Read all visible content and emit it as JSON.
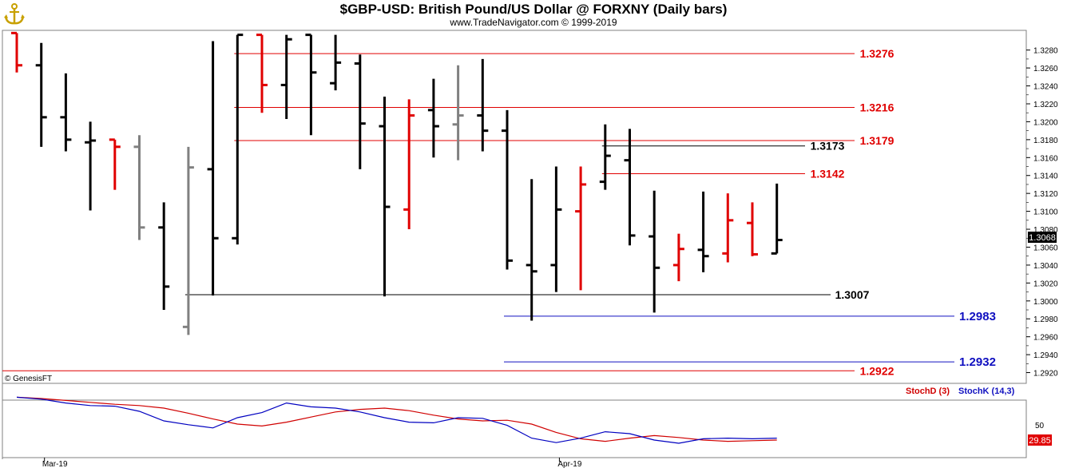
{
  "header": {
    "title": "$GBP-USD:  British Pound/US Dollar @ FORXNY  (Daily bars)",
    "subtitle": "www.TradeNavigator.com © 1999-2019"
  },
  "copyright": "© GenesisFT",
  "colors": {
    "up": "#000000",
    "down": "#e00000",
    "neutral": "#808080",
    "support_blue": "#1010c0",
    "stochD": "#d00000",
    "stochK": "#0000c0"
  },
  "chart_data": [
    {
      "type": "ohlc",
      "y_axis": {
        "range": [
          1.2908,
          1.3302
        ],
        "ticks": [
          "1.3280",
          "1.3260",
          "1.3240",
          "1.3220",
          "1.3200",
          "1.3180",
          "1.3160",
          "1.3140",
          "1.3120",
          "1.3100",
          "1.3080",
          "1.3060",
          "1.3040",
          "1.3020",
          "1.3000",
          "1.2980",
          "1.2960",
          "1.2940",
          "1.2920"
        ]
      },
      "x_labels": [
        {
          "label": "Mar-19",
          "bar": 1
        },
        {
          "label": "Apr-19",
          "bar": 22
        }
      ],
      "last_price": "1.3068",
      "bars": [
        {
          "o": 1.3299,
          "h": 1.3299,
          "l": 1.3255,
          "c": 1.3263,
          "color": "down"
        },
        {
          "o": 1.3263,
          "h": 1.3288,
          "l": 1.3172,
          "c": 1.3205,
          "color": "up"
        },
        {
          "o": 1.3205,
          "h": 1.3254,
          "l": 1.3167,
          "c": 1.318,
          "color": "up"
        },
        {
          "o": 1.3177,
          "h": 1.32,
          "l": 1.3101,
          "c": 1.3179,
          "color": "up"
        },
        {
          "o": 1.318,
          "h": 1.318,
          "l": 1.3124,
          "c": 1.3172,
          "color": "down"
        },
        {
          "o": 1.3172,
          "h": 1.3185,
          "l": 1.3068,
          "c": 1.3082,
          "color": "neutral"
        },
        {
          "o": 1.3082,
          "h": 1.311,
          "l": 1.299,
          "c": 1.3016,
          "color": "up"
        },
        {
          "o": 1.2971,
          "h": 1.3172,
          "l": 1.2962,
          "c": 1.3149,
          "color": "neutral"
        },
        {
          "o": 1.3147,
          "h": 1.329,
          "l": 1.3006,
          "c": 1.307,
          "color": "up"
        },
        {
          "o": 1.307,
          "h": 1.3297,
          "l": 1.3063,
          "c": 1.3297,
          "color": "up"
        },
        {
          "o": 1.3297,
          "h": 1.3297,
          "l": 1.321,
          "c": 1.3241,
          "color": "down"
        },
        {
          "o": 1.3241,
          "h": 1.3297,
          "l": 1.3203,
          "c": 1.3292,
          "color": "up"
        },
        {
          "o": 1.3297,
          "h": 1.3297,
          "l": 1.3185,
          "c": 1.3255,
          "color": "up"
        },
        {
          "o": 1.3243,
          "h": 1.3297,
          "l": 1.3235,
          "c": 1.3266,
          "color": "up"
        },
        {
          "o": 1.3265,
          "h": 1.3275,
          "l": 1.3147,
          "c": 1.3198,
          "color": "up"
        },
        {
          "o": 1.3195,
          "h": 1.3228,
          "l": 1.3005,
          "c": 1.3105,
          "color": "up"
        },
        {
          "o": 1.3102,
          "h": 1.3225,
          "l": 1.308,
          "c": 1.3207,
          "color": "down"
        },
        {
          "o": 1.3213,
          "h": 1.3248,
          "l": 1.316,
          "c": 1.3195,
          "color": "up"
        },
        {
          "o": 1.3197,
          "h": 1.3263,
          "l": 1.3157,
          "c": 1.3207,
          "color": "neutral"
        },
        {
          "o": 1.3207,
          "h": 1.327,
          "l": 1.3167,
          "c": 1.319,
          "color": "up"
        },
        {
          "o": 1.319,
          "h": 1.3213,
          "l": 1.3035,
          "c": 1.3045,
          "color": "up"
        },
        {
          "o": 1.304,
          "h": 1.3136,
          "l": 1.2978,
          "c": 1.3033,
          "color": "up"
        },
        {
          "o": 1.304,
          "h": 1.315,
          "l": 1.301,
          "c": 1.3102,
          "color": "up"
        },
        {
          "o": 1.31,
          "h": 1.315,
          "l": 1.3012,
          "c": 1.313,
          "color": "down"
        },
        {
          "o": 1.3133,
          "h": 1.3197,
          "l": 1.3124,
          "c": 1.3162,
          "color": "up"
        },
        {
          "o": 1.3157,
          "h": 1.3192,
          "l": 1.3062,
          "c": 1.3073,
          "color": "up"
        },
        {
          "o": 1.3072,
          "h": 1.3123,
          "l": 1.2987,
          "c": 1.3037,
          "color": "up"
        },
        {
          "o": 1.304,
          "h": 1.3075,
          "l": 1.3022,
          "c": 1.3058,
          "color": "down"
        },
        {
          "o": 1.3057,
          "h": 1.3122,
          "l": 1.3032,
          "c": 1.305,
          "color": "up"
        },
        {
          "o": 1.3053,
          "h": 1.312,
          "l": 1.3043,
          "c": 1.309,
          "color": "down"
        },
        {
          "o": 1.3087,
          "h": 1.311,
          "l": 1.305,
          "c": 1.3052,
          "color": "down"
        },
        {
          "o": 1.3053,
          "h": 1.3131,
          "l": 1.3053,
          "c": 1.3068,
          "color": "up"
        }
      ],
      "levels": [
        {
          "value": 1.3276,
          "label": "1.3276",
          "color": "red",
          "from_bar": 9
        },
        {
          "value": 1.3216,
          "label": "1.3216",
          "color": "red",
          "from_bar": 9
        },
        {
          "value": 1.3179,
          "label": "1.3179",
          "color": "red",
          "from_bar": 9
        },
        {
          "value": 1.3173,
          "label": "1.3173",
          "color": "black",
          "from_bar": 24
        },
        {
          "value": 1.3142,
          "label": "1.3142",
          "color": "red",
          "from_bar": 24
        },
        {
          "value": 1.3007,
          "label": "1.3007",
          "color": "black",
          "from_bar": 7
        },
        {
          "value": 1.2983,
          "label": "1.2983",
          "color": "blue",
          "from_bar": 20
        },
        {
          "value": 1.2932,
          "label": "1.2932",
          "color": "blue",
          "from_bar": 20
        },
        {
          "value": 1.2922,
          "label": "1.2922",
          "color": "red",
          "from_bar": -1
        }
      ]
    },
    {
      "type": "line",
      "legend": [
        "StochD (3)",
        "StochK (14,3)"
      ],
      "y_axis": {
        "range": [
          0,
          100
        ],
        "ticks": [
          "50"
        ]
      },
      "last_value": "29.85",
      "series": [
        {
          "name": "StochD (3)",
          "color": "stochD",
          "values": [
            97,
            95,
            92,
            89,
            86,
            84,
            80,
            72,
            63,
            55,
            52,
            58,
            66,
            74,
            78,
            80,
            76,
            69,
            63,
            60,
            61,
            55,
            42,
            32,
            28,
            33,
            37,
            34,
            30,
            28,
            29,
            30
          ]
        },
        {
          "name": "StochK (14,3)",
          "color": "stochK",
          "values": [
            97,
            94,
            88,
            84,
            83,
            75,
            60,
            54,
            49,
            65,
            73,
            88,
            82,
            80,
            74,
            65,
            58,
            57,
            65,
            64,
            53,
            33,
            26,
            33,
            43,
            40,
            30,
            25,
            32,
            33,
            32,
            33
          ]
        }
      ]
    }
  ]
}
